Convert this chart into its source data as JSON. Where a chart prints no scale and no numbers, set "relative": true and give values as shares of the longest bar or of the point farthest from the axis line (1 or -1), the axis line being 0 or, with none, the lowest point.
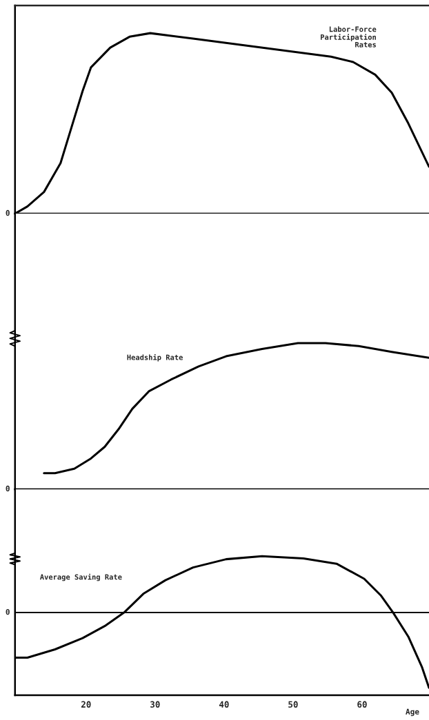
{
  "chart_data": [
    {
      "type": "line",
      "relative": true,
      "xlim": [
        9.7,
        69.7
      ],
      "tick_labels": false,
      "series": [
        {
          "name": "Labor-Force\nParticipation\nRates",
          "color": "#000000",
          "x": [
            9.7,
            11.5,
            13.9,
            16.3,
            17.9,
            19.5,
            20.7,
            23.5,
            26.3,
            29.3,
            35.5,
            43.5,
            51.5,
            55.5,
            58.7,
            61.9,
            64.3,
            66.7,
            69.7
          ],
          "values": [
            0,
            0.04,
            0.12,
            0.28,
            0.48,
            0.68,
            0.81,
            0.92,
            0.98,
            1.0,
            0.97,
            0.93,
            0.89,
            0.87,
            0.84,
            0.77,
            0.67,
            0.5,
            0.26
          ]
        }
      ],
      "annotations": [
        "0"
      ]
    },
    {
      "type": "line",
      "relative": true,
      "xlim": [
        9.7,
        69.7
      ],
      "tick_labels": false,
      "series": [
        {
          "name": "Headship Rate",
          "color": "#000000",
          "x": [
            13.9,
            15.5,
            18.3,
            20.7,
            22.7,
            24.7,
            26.7,
            29.1,
            32.3,
            36.3,
            40.3,
            45.5,
            50.7,
            54.7,
            59.5,
            64.3,
            69.7
          ],
          "values": [
            0.11,
            0.11,
            0.14,
            0.21,
            0.29,
            0.41,
            0.55,
            0.67,
            0.75,
            0.84,
            0.91,
            0.96,
            1.0,
            1.0,
            0.98,
            0.94,
            0.9
          ]
        }
      ],
      "annotations": [
        "0"
      ]
    },
    {
      "type": "line",
      "relative": true,
      "xlim": [
        9.7,
        69.7
      ],
      "xticks": [
        20,
        30,
        40,
        50,
        60
      ],
      "xlabel": "Age",
      "tick_labels": "x",
      "series": [
        {
          "name": "Average Saving Rate",
          "color": "#000000",
          "x": [
            9.7,
            11.5,
            15.5,
            19.5,
            22.7,
            25.5,
            28.3,
            31.5,
            35.5,
            40.3,
            45.5,
            51.5,
            56.3,
            60.3,
            62.7,
            64.5,
            66.7,
            68.7,
            69.7
          ],
          "values": [
            -0.6,
            -0.6,
            -0.49,
            -0.34,
            -0.18,
            0,
            0.25,
            0.43,
            0.6,
            0.71,
            0.75,
            0.72,
            0.65,
            0.45,
            0.23,
            0,
            -0.32,
            -0.73,
            -1.0
          ]
        }
      ],
      "annotations": [
        "0"
      ]
    }
  ]
}
